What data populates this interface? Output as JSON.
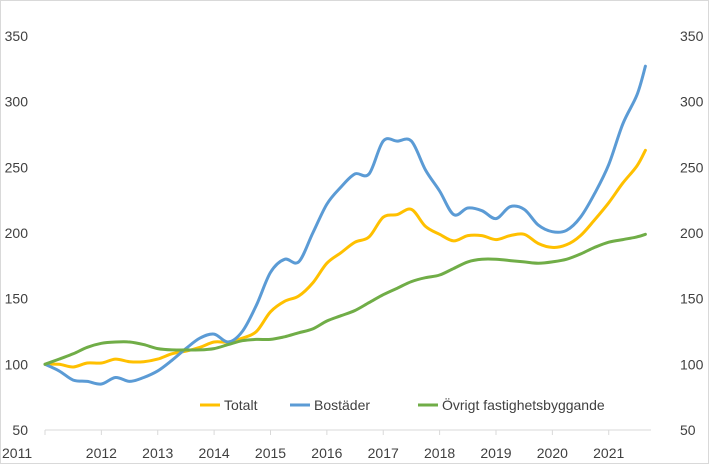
{
  "chart_data": {
    "type": "line",
    "title": "",
    "xlabel": "",
    "ylabel": "",
    "ylim": [
      50,
      350
    ],
    "yticks": [
      50,
      100,
      150,
      200,
      250,
      300,
      350
    ],
    "y_axis_both_sides": true,
    "xlim": [
      2011,
      2021.75
    ],
    "xticks": [
      2011,
      2012,
      2013,
      2014,
      2015,
      2016,
      2017,
      2018,
      2019,
      2020,
      2021
    ],
    "grid": false,
    "legend_position": "bottom-right inside",
    "series": [
      {
        "name": "Totalt",
        "color": "#ffc000",
        "x": [
          2011,
          2011.25,
          2011.5,
          2011.75,
          2012,
          2012.25,
          2012.5,
          2012.75,
          2013,
          2013.25,
          2013.5,
          2013.75,
          2014,
          2014.25,
          2014.5,
          2014.75,
          2015,
          2015.25,
          2015.5,
          2015.75,
          2016,
          2016.25,
          2016.5,
          2016.75,
          2017,
          2017.25,
          2017.5,
          2017.75,
          2018,
          2018.25,
          2018.5,
          2018.75,
          2019,
          2019.25,
          2019.5,
          2019.75,
          2020,
          2020.25,
          2020.5,
          2020.75,
          2021,
          2021.25,
          2021.5,
          2021.65
        ],
        "y": [
          100,
          100,
          98,
          101,
          101,
          104,
          102,
          102,
          104,
          108,
          110,
          113,
          117,
          117,
          120,
          125,
          140,
          148,
          152,
          162,
          177,
          185,
          193,
          197,
          212,
          214,
          218,
          205,
          199,
          194,
          198,
          198,
          195,
          198,
          199,
          192,
          189,
          191,
          198,
          210,
          223,
          238,
          251,
          263
        ]
      },
      {
        "name": "Bostäder",
        "color": "#5b9bd5",
        "x": [
          2011,
          2011.25,
          2011.5,
          2011.75,
          2012,
          2012.25,
          2012.5,
          2012.75,
          2013,
          2013.25,
          2013.5,
          2013.75,
          2014,
          2014.25,
          2014.5,
          2014.75,
          2015,
          2015.25,
          2015.5,
          2015.75,
          2016,
          2016.25,
          2016.5,
          2016.75,
          2017,
          2017.25,
          2017.5,
          2017.75,
          2018,
          2018.25,
          2018.5,
          2018.75,
          2019,
          2019.25,
          2019.5,
          2019.75,
          2020,
          2020.25,
          2020.5,
          2020.75,
          2021,
          2021.25,
          2021.5,
          2021.65
        ],
        "y": [
          100,
          95,
          88,
          87,
          85,
          90,
          87,
          90,
          95,
          103,
          112,
          120,
          123,
          117,
          125,
          145,
          170,
          180,
          178,
          200,
          222,
          235,
          245,
          245,
          270,
          270,
          270,
          248,
          232,
          214,
          219,
          217,
          211,
          220,
          218,
          206,
          201,
          202,
          212,
          230,
          252,
          283,
          305,
          327
        ]
      },
      {
        "name": "Övrigt fastighetsbyggande",
        "color": "#70ad47",
        "x": [
          2011,
          2011.25,
          2011.5,
          2011.75,
          2012,
          2012.25,
          2012.5,
          2012.75,
          2013,
          2013.25,
          2013.5,
          2013.75,
          2014,
          2014.25,
          2014.5,
          2014.75,
          2015,
          2015.25,
          2015.5,
          2015.75,
          2016,
          2016.25,
          2016.5,
          2016.75,
          2017,
          2017.25,
          2017.5,
          2017.75,
          2018,
          2018.25,
          2018.5,
          2018.75,
          2019,
          2019.25,
          2019.5,
          2019.75,
          2020,
          2020.25,
          2020.5,
          2020.75,
          2021,
          2021.25,
          2021.5,
          2021.65
        ],
        "y": [
          100,
          104,
          108,
          113,
          116,
          117,
          117,
          115,
          112,
          111,
          111,
          111,
          112,
          115,
          118,
          119,
          119,
          121,
          124,
          127,
          133,
          137,
          141,
          147,
          153,
          158,
          163,
          166,
          168,
          173,
          178,
          180,
          180,
          179,
          178,
          177,
          178,
          180,
          184,
          189,
          193,
          195,
          197,
          199
        ]
      }
    ]
  }
}
